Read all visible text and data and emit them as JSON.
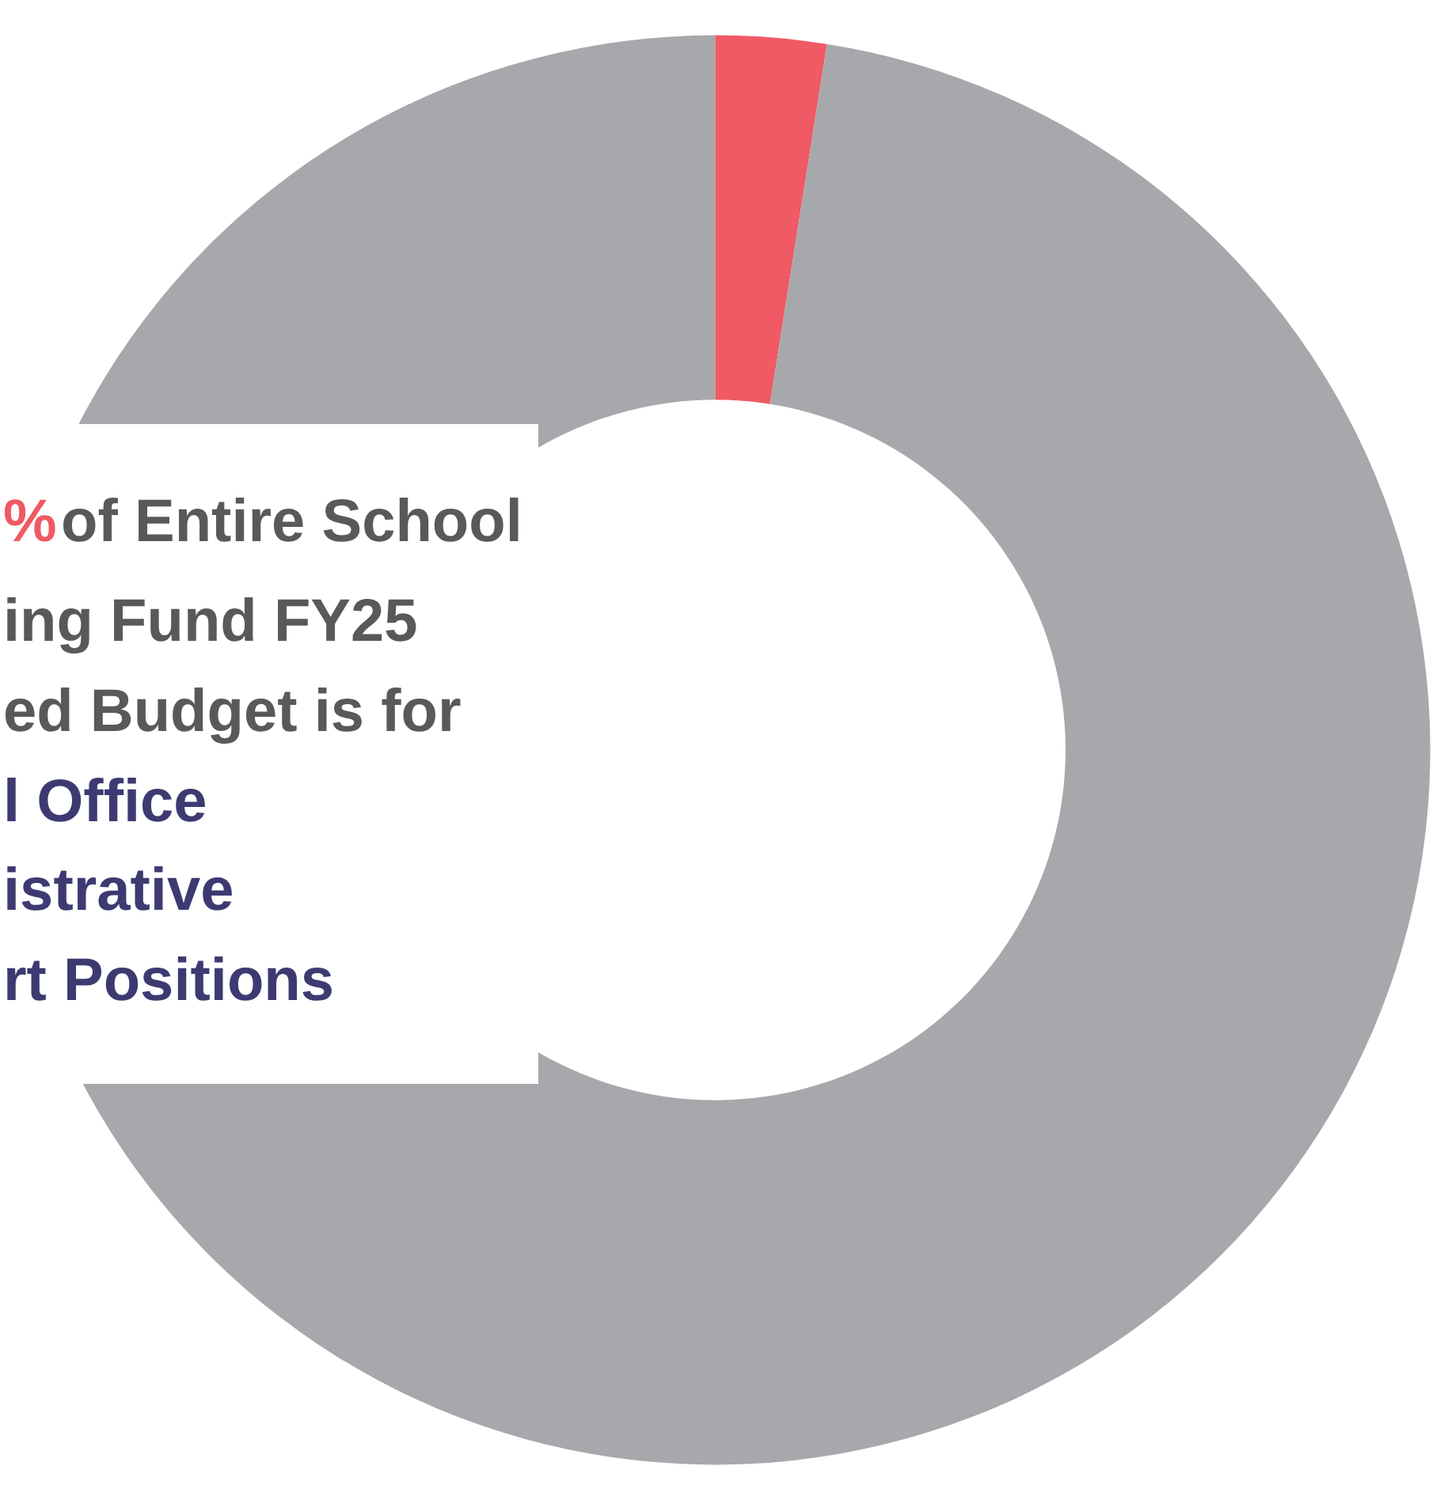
{
  "chart_data": {
    "type": "donut",
    "categories": [
      null,
      null
    ],
    "values": [
      2.5,
      97.5
    ],
    "colors": [
      "#ef5a64",
      "#a7a8ab"
    ],
    "legend": false,
    "annotations": [
      "%",
      " of Entire School",
      "ing Fund FY25",
      "ed Budget is for",
      "l Office",
      "istrative",
      "rt Positions"
    ]
  }
}
